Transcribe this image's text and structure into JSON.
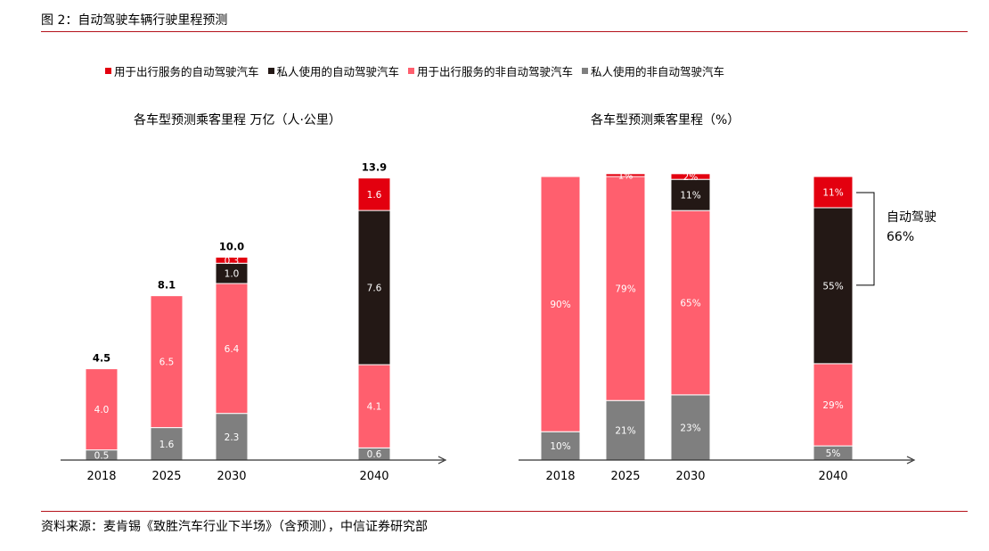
{
  "figure": {
    "title": "图 2：自动驾驶车辆行驶里程预测",
    "source": "资料来源：麦肯锡《致胜汽车行业下半场》（含预测），中信证券研究部"
  },
  "legend": [
    {
      "label": "用于出行服务的自动驾驶汽车",
      "color": "#e3000f"
    },
    {
      "label": "私人使用的自动驾驶汽车",
      "color": "#231815"
    },
    {
      "label": "用于出行服务的非自动驾驶汽车",
      "color": "#ff5f6e"
    },
    {
      "label": "私人使用的非自动驾驶汽车",
      "color": "#7f7f7f"
    }
  ],
  "chart_data": [
    {
      "type": "bar",
      "stacked": true,
      "title": "各车型预测乘客里程 万亿（人·公里）",
      "categories": [
        "2018",
        "2025",
        "2030",
        "2040"
      ],
      "ylim": [
        0,
        14.5
      ],
      "series": [
        {
          "name": "私人使用的非自动驾驶汽车",
          "color": "#7f7f7f",
          "values": [
            0.5,
            1.6,
            2.3,
            0.6
          ],
          "labels": [
            "0.5",
            "1.6",
            "2.3",
            "0.6"
          ]
        },
        {
          "name": "用于出行服务的非自动驾驶汽车",
          "color": "#ff5f6e",
          "values": [
            4.0,
            6.5,
            6.4,
            4.1
          ],
          "labels": [
            "4.0",
            "6.5",
            "6.4",
            "4.1"
          ]
        },
        {
          "name": "私人使用的自动驾驶汽车",
          "color": "#231815",
          "values": [
            0,
            0,
            1.0,
            7.6
          ],
          "labels": [
            "",
            "",
            "1.0",
            "7.6"
          ]
        },
        {
          "name": "用于出行服务的自动驾驶汽车",
          "color": "#e3000f",
          "values": [
            0,
            0,
            0.3,
            1.6
          ],
          "labels": [
            "",
            "",
            "0.3",
            "1.6"
          ]
        }
      ],
      "totals": [
        "4.5",
        "8.1",
        "10.0",
        "13.9"
      ]
    },
    {
      "type": "bar",
      "stacked": true,
      "title": "各车型预测乘客里程（%）",
      "categories": [
        "2018",
        "2025",
        "2030",
        "2040"
      ],
      "ylim": [
        0,
        100
      ],
      "series": [
        {
          "name": "私人使用的非自动驾驶汽车",
          "color": "#7f7f7f",
          "values": [
            10,
            21,
            23,
            5
          ],
          "labels": [
            "10%",
            "21%",
            "23%",
            "5%"
          ]
        },
        {
          "name": "用于出行服务的非自动驾驶汽车",
          "color": "#ff5f6e",
          "values": [
            90,
            79,
            65,
            29
          ],
          "labels": [
            "90%",
            "79%",
            "65%",
            "29%"
          ]
        },
        {
          "name": "私人使用的自动驾驶汽车",
          "color": "#231815",
          "values": [
            0,
            0,
            11,
            55
          ],
          "labels": [
            "",
            "",
            "11%",
            "55%"
          ]
        },
        {
          "name": "用于出行服务的自动驾驶汽车",
          "color": "#e3000f",
          "values": [
            0,
            1,
            2,
            11
          ],
          "labels": [
            "",
            "1%",
            "2%",
            "11%"
          ]
        }
      ],
      "annotation": {
        "line1": "自动驾驶",
        "line2": "66%"
      }
    }
  ]
}
